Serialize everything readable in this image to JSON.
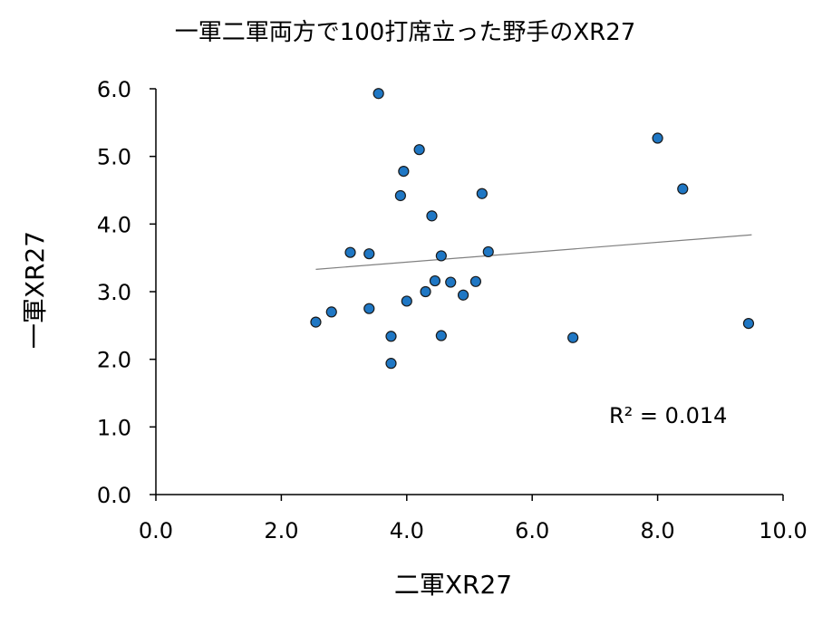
{
  "chart_data": {
    "type": "scatter",
    "title": "一軍二軍両方で100打席立った野手のXR27",
    "xlabel": "二軍XR27",
    "ylabel": "一軍XR27",
    "xlim": [
      0,
      10
    ],
    "ylim": [
      0,
      6
    ],
    "x_ticks": [
      "0.0",
      "2.0",
      "4.0",
      "6.0",
      "8.0",
      "10.0"
    ],
    "y_ticks": [
      "0.0",
      "1.0",
      "2.0",
      "3.0",
      "4.0",
      "5.0",
      "6.0"
    ],
    "grid": false,
    "legend": "none",
    "marker_color": "#1f77c4",
    "trendline": {
      "type": "linear",
      "x": [
        2.55,
        9.5
      ],
      "y": [
        3.33,
        3.84
      ],
      "color": "#808080"
    },
    "r_squared_label": "R² = 0.014",
    "points": [
      {
        "x": 2.55,
        "y": 2.55
      },
      {
        "x": 2.8,
        "y": 2.7
      },
      {
        "x": 3.1,
        "y": 3.58
      },
      {
        "x": 3.4,
        "y": 3.56
      },
      {
        "x": 3.4,
        "y": 2.75
      },
      {
        "x": 3.55,
        "y": 5.93
      },
      {
        "x": 3.75,
        "y": 2.34
      },
      {
        "x": 3.75,
        "y": 1.94
      },
      {
        "x": 3.9,
        "y": 4.42
      },
      {
        "x": 3.95,
        "y": 4.78
      },
      {
        "x": 4.0,
        "y": 2.86
      },
      {
        "x": 4.2,
        "y": 5.1
      },
      {
        "x": 4.3,
        "y": 3.0
      },
      {
        "x": 4.4,
        "y": 4.12
      },
      {
        "x": 4.45,
        "y": 3.16
      },
      {
        "x": 4.55,
        "y": 3.53
      },
      {
        "x": 4.55,
        "y": 2.35
      },
      {
        "x": 4.7,
        "y": 3.14
      },
      {
        "x": 4.9,
        "y": 2.95
      },
      {
        "x": 5.1,
        "y": 3.15
      },
      {
        "x": 5.2,
        "y": 4.45
      },
      {
        "x": 5.3,
        "y": 3.59
      },
      {
        "x": 6.65,
        "y": 2.32
      },
      {
        "x": 8.0,
        "y": 5.27
      },
      {
        "x": 8.4,
        "y": 4.52
      },
      {
        "x": 9.45,
        "y": 2.53
      }
    ]
  }
}
